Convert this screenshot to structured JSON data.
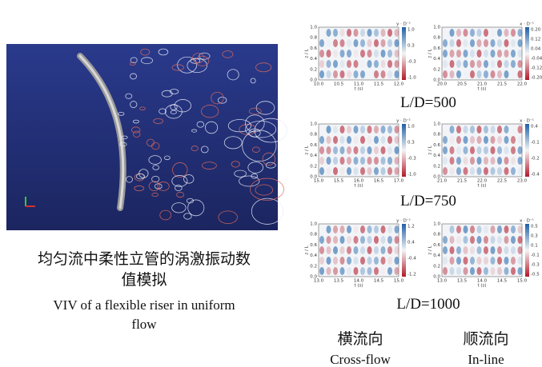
{
  "caption": {
    "zh_lines": [
      "均匀流中柔性立管的涡激振动数",
      "值模拟"
    ],
    "en_lines": [
      "VIV of a flexible riser in uniform",
      "flow"
    ]
  },
  "rows": [
    {
      "label": "L/D=500",
      "panels": [
        {
          "xticks": [
            "10.0",
            "10.5",
            "11.0",
            "11.5",
            "12.0"
          ],
          "yticks": [
            "0.0",
            "0.2",
            "0.4",
            "0.6",
            "0.8",
            "1.0"
          ],
          "cbar_ticks": [
            "1.0",
            "0.3",
            "-0.3",
            "-1.0"
          ],
          "xlabel": "t (s)",
          "ylabel": "z / L",
          "cbar_label": "y · D⁻¹"
        },
        {
          "xticks": [
            "20.0",
            "20.5",
            "21.0",
            "21.5",
            "22.0"
          ],
          "yticks": [
            "0.0",
            "0.2",
            "0.4",
            "0.6",
            "0.8",
            "1.0"
          ],
          "cbar_ticks": [
            "0.20",
            "0.12",
            "0.04",
            "-0.04",
            "-0.12",
            "-0.20"
          ],
          "xlabel": "t (s)",
          "ylabel": "z / L",
          "cbar_label": "x · D⁻¹"
        }
      ]
    },
    {
      "label": "L/D=750",
      "panels": [
        {
          "xticks": [
            "15.0",
            "15.5",
            "16.0",
            "16.5",
            "17.0"
          ],
          "yticks": [
            "0.0",
            "0.2",
            "0.4",
            "0.6",
            "0.8",
            "1.0"
          ],
          "cbar_ticks": [
            "1.0",
            "0.3",
            "-0.3",
            "-1.0"
          ],
          "xlabel": "t (s)",
          "ylabel": "z / L",
          "cbar_label": "y · D⁻¹"
        },
        {
          "xticks": [
            "21.0",
            "21.5",
            "22.0",
            "22.5",
            "23.0"
          ],
          "yticks": [
            "0.0",
            "0.2",
            "0.4",
            "0.6",
            "0.8",
            "1.0"
          ],
          "cbar_ticks": [
            "0.4",
            "-0.1",
            "-0.2",
            "-0.4"
          ],
          "xlabel": "t (s)",
          "ylabel": "z / L",
          "cbar_label": "x · D⁻¹"
        }
      ]
    },
    {
      "label": "L/D=1000",
      "panels": [
        {
          "xticks": [
            "13.0",
            "13.5",
            "14.0",
            "14.5",
            "15.0"
          ],
          "yticks": [
            "0.0",
            "0.2",
            "0.4",
            "0.6",
            "0.8",
            "1.0"
          ],
          "cbar_ticks": [
            "1.2",
            "0.4",
            "-0.4",
            "-1.2"
          ],
          "xlabel": "t (s)",
          "ylabel": "z / L",
          "cbar_label": "y · D⁻¹"
        },
        {
          "xticks": [
            "13.0",
            "13.5",
            "14.0",
            "14.5",
            "15.0"
          ],
          "yticks": [
            "0.0",
            "0.2",
            "0.4",
            "0.6",
            "0.8",
            "1.0"
          ],
          "cbar_ticks": [
            "0.5",
            "0.3",
            "0.1",
            "-0.1",
            "-0.3",
            "-0.5"
          ],
          "xlabel": "t (s)",
          "ylabel": "z / L",
          "cbar_label": "x · D⁻¹"
        }
      ]
    }
  ],
  "columns": [
    {
      "zh": "横流向",
      "en": "Cross-flow"
    },
    {
      "zh": "顺流向",
      "en": "In-line"
    }
  ]
}
